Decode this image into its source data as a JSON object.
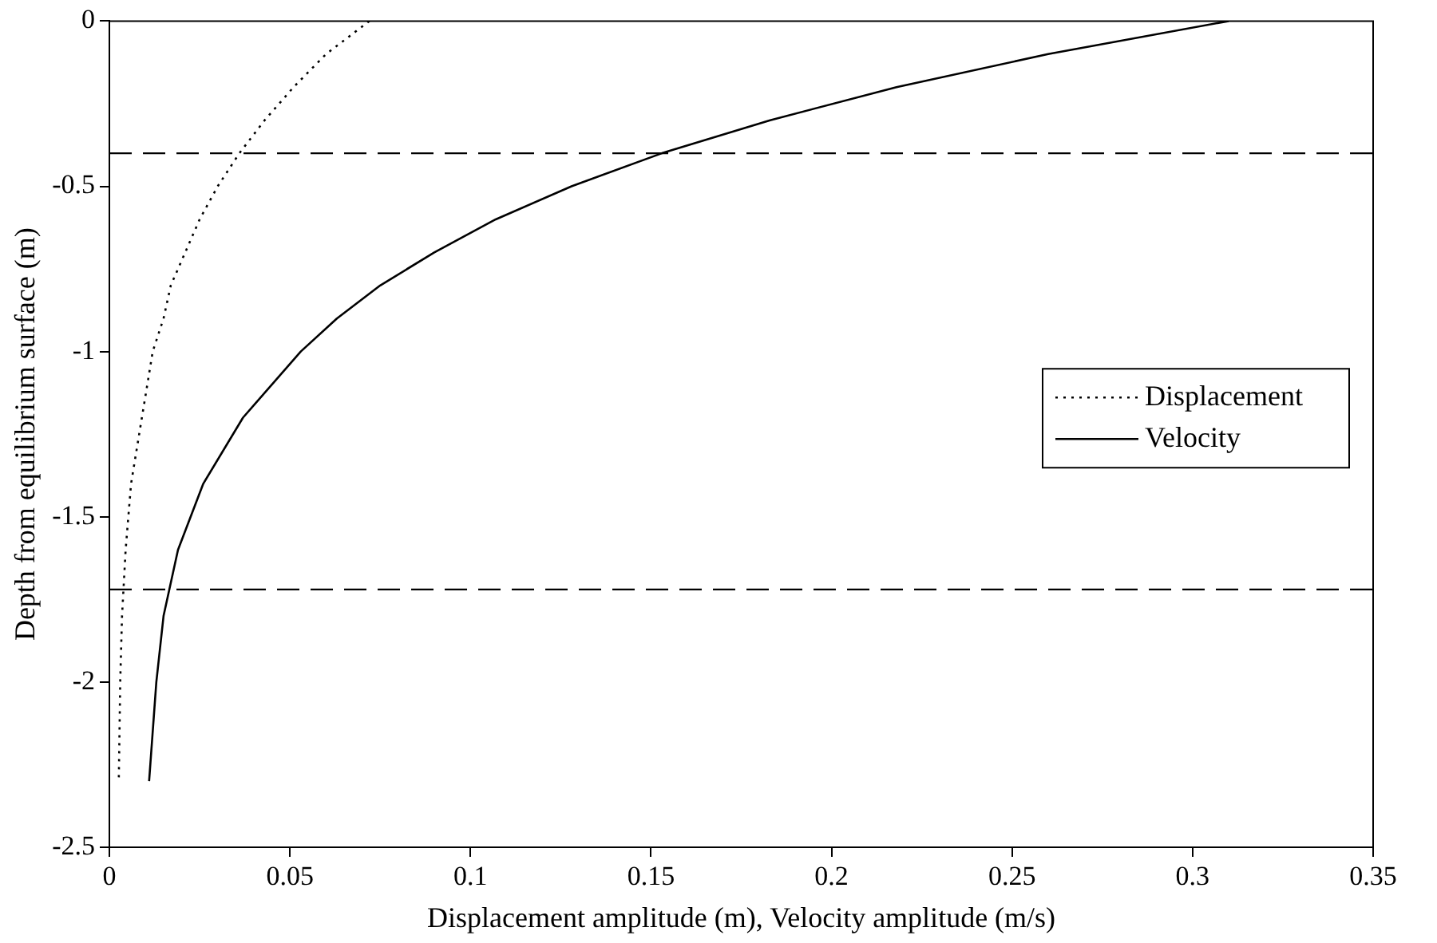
{
  "chart_data": {
    "type": "line",
    "xlabel": "Displacement amplitude (m), Velocity amplitude (m/s)",
    "ylabel": "Depth from equilibrium surface (m)",
    "xlim": [
      0,
      0.35
    ],
    "xticks": [
      0,
      0.05,
      0.1,
      0.15,
      0.2,
      0.25,
      0.3,
      0.35
    ],
    "ylim": [
      -2.5,
      0
    ],
    "yticks": [
      -2.5,
      -2,
      -1.5,
      -1,
      -0.5,
      0
    ],
    "grid": false,
    "legend": "right",
    "marker": "none",
    "ref_lines": [
      {
        "axis": "y",
        "value": -0.4,
        "color": "#000000",
        "line_style": "dashed"
      },
      {
        "axis": "y",
        "value": -1.72,
        "color": "#000000",
        "line_style": "dashed"
      }
    ],
    "series": [
      {
        "name": "Displacement",
        "color": "#000000",
        "line_style": "dotted",
        "x": [
          0.072,
          0.06,
          0.051,
          0.043,
          0.036,
          0.03,
          0.025,
          0.021,
          0.017,
          0.015,
          0.012,
          0.009,
          0.006,
          0.0045,
          0.0035,
          0.003,
          0.0026
        ],
        "values": [
          0,
          -0.1,
          -0.2,
          -0.3,
          -0.4,
          -0.5,
          -0.6,
          -0.7,
          -0.8,
          -0.9,
          -1,
          -1.2,
          -1.4,
          -1.6,
          -1.8,
          -2,
          -2.3
        ]
      },
      {
        "name": "Velocity",
        "color": "#000000",
        "line_style": "solid",
        "x": [
          0.31,
          0.26,
          0.218,
          0.183,
          0.153,
          0.128,
          0.107,
          0.09,
          0.075,
          0.063,
          0.053,
          0.037,
          0.026,
          0.019,
          0.015,
          0.013,
          0.011
        ],
        "values": [
          0,
          -0.1,
          -0.2,
          -0.3,
          -0.4,
          -0.5,
          -0.6,
          -0.7,
          -0.8,
          -0.9,
          -1,
          -1.2,
          -1.4,
          -1.6,
          -1.8,
          -2,
          -2.3
        ]
      }
    ]
  }
}
